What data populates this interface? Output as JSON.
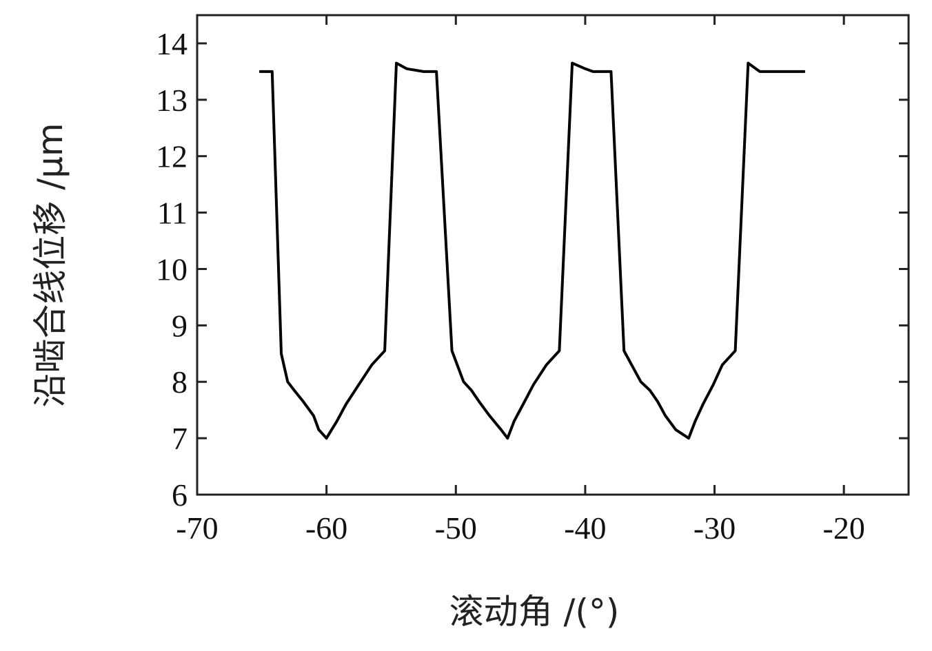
{
  "chart_data": {
    "type": "line",
    "xlabel": "滚动角 /(°)",
    "ylabel": "沿啮合线位移 /μm",
    "xlim": [
      -70,
      -15
    ],
    "ylim": [
      6,
      14.5
    ],
    "xticks": [
      -70,
      -60,
      -50,
      -40,
      -30,
      -20
    ],
    "yticks": [
      6,
      7,
      8,
      9,
      10,
      11,
      12,
      13,
      14
    ],
    "grid": false,
    "series": [
      {
        "color": "#000000",
        "x": [
          -65.2,
          -64.2,
          -63.5,
          -63.0,
          -62.5,
          -61.8,
          -61.0,
          -60.6,
          -60.0,
          -59.2,
          -58.5,
          -57.5,
          -56.5,
          -55.5,
          -54.6,
          -53.8,
          -52.5,
          -51.5,
          -50.3,
          -49.4,
          -48.8,
          -48.2,
          -47.4,
          -46.5,
          -46.0,
          -45.5,
          -44.8,
          -44.0,
          -43.0,
          -42.0,
          -41.0,
          -40.0,
          -39.4,
          -38.0,
          -37.0,
          -35.7,
          -35.0,
          -34.4,
          -33.8,
          -33.0,
          -32.0,
          -31.5,
          -30.9,
          -30.1,
          -29.4,
          -28.4,
          -27.4,
          -26.5,
          -25.8,
          -25.0,
          -23.0
        ],
        "y": [
          13.5,
          13.5,
          8.5,
          8.0,
          7.85,
          7.65,
          7.4,
          7.15,
          7.0,
          7.3,
          7.6,
          7.95,
          8.3,
          8.55,
          13.65,
          13.55,
          13.5,
          13.5,
          8.55,
          8.0,
          7.85,
          7.65,
          7.4,
          7.15,
          7.0,
          7.3,
          7.6,
          7.95,
          8.3,
          8.55,
          13.65,
          13.55,
          13.5,
          13.5,
          8.55,
          8.0,
          7.85,
          7.65,
          7.4,
          7.15,
          7.0,
          7.3,
          7.6,
          7.95,
          8.3,
          8.55,
          13.65,
          13.5,
          13.5,
          13.5,
          13.5
        ]
      }
    ]
  }
}
